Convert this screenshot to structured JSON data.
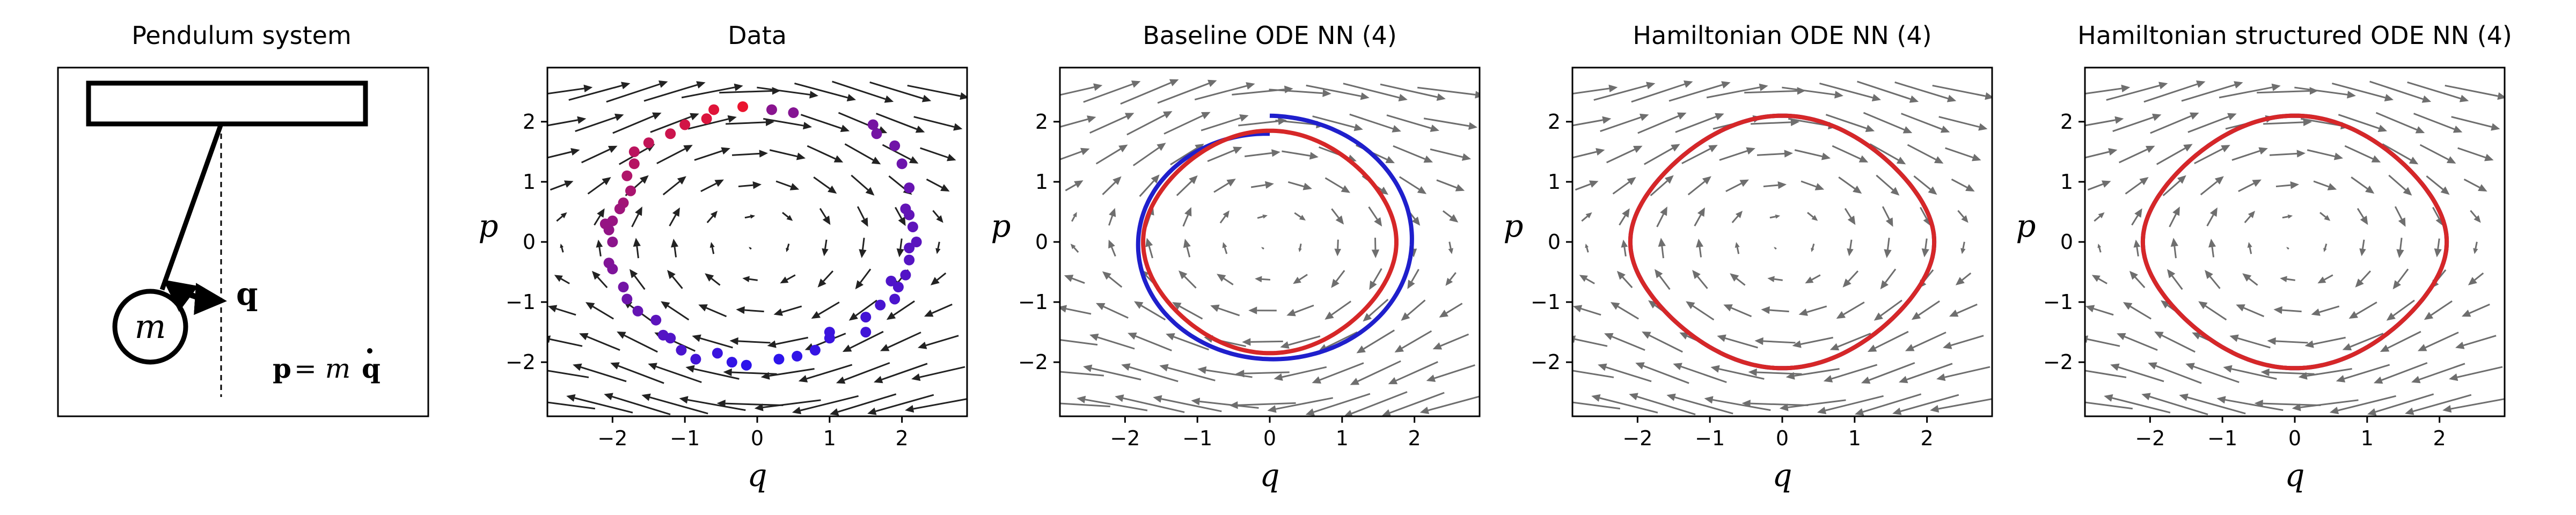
{
  "pendulum_panel": {
    "title": "Pendulum system",
    "mass_label": "m",
    "coord_label": "q",
    "momentum_lhs": "p",
    "momentum_rhs": "= m",
    "momentum_rhs_var": "q"
  },
  "colors": {
    "true_trajectory": "#d62728",
    "model_trajectory": "#1f1fcc",
    "data_arrows": "#222222",
    "model_arrows": "#6e6e6e"
  },
  "chart_data": [
    {
      "type": "scatter",
      "title": "Data",
      "xlabel": "q",
      "ylabel": "p",
      "xlim": [
        -2.9,
        2.9
      ],
      "ylim": [
        -2.9,
        2.9
      ],
      "xticks": [
        -2,
        -1,
        0,
        1,
        2
      ],
      "yticks": [
        -2,
        -1,
        0,
        1,
        2
      ],
      "xtick_labels": [
        "−2",
        "−1",
        "0",
        "1",
        "2"
      ],
      "ytick_labels": [
        "−2",
        "−1",
        "0",
        "1",
        "2"
      ],
      "vector_field": "hamiltonian-pendulum",
      "points": [
        [
          -0.2,
          2.25
        ],
        [
          -0.6,
          2.2
        ],
        [
          -0.7,
          2.05
        ],
        [
          -1.0,
          1.95
        ],
        [
          -1.2,
          1.8
        ],
        [
          -1.5,
          1.65
        ],
        [
          -1.7,
          1.5
        ],
        [
          -1.7,
          1.3
        ],
        [
          -1.8,
          1.1
        ],
        [
          -1.75,
          0.85
        ],
        [
          -1.85,
          0.65
        ],
        [
          -1.9,
          0.55
        ],
        [
          -2.0,
          0.35
        ],
        [
          -2.05,
          0.2
        ],
        [
          -2.1,
          0.3
        ],
        [
          -2.0,
          0.0
        ],
        [
          -2.05,
          -0.35
        ],
        [
          -2.0,
          -0.45
        ],
        [
          -1.85,
          -0.75
        ],
        [
          -1.8,
          -0.95
        ],
        [
          -1.65,
          -1.15
        ],
        [
          -1.4,
          -1.3
        ],
        [
          -1.3,
          -1.55
        ],
        [
          -1.2,
          -1.6
        ],
        [
          -1.05,
          -1.8
        ],
        [
          -0.85,
          -1.95
        ],
        [
          -0.55,
          -1.85
        ],
        [
          -0.35,
          -2.0
        ],
        [
          -0.15,
          -2.05
        ],
        [
          0.3,
          -1.95
        ],
        [
          0.55,
          -1.9
        ],
        [
          0.8,
          -1.8
        ],
        [
          1.0,
          -1.6
        ],
        [
          1.0,
          -1.5
        ],
        [
          1.5,
          -1.25
        ],
        [
          1.9,
          -0.95
        ],
        [
          1.95,
          -0.75
        ],
        [
          2.05,
          -0.55
        ],
        [
          2.1,
          -0.3
        ],
        [
          2.1,
          -0.1
        ],
        [
          2.2,
          0.0
        ],
        [
          2.15,
          0.25
        ],
        [
          2.1,
          0.45
        ],
        [
          2.05,
          0.55
        ],
        [
          2.1,
          0.9
        ],
        [
          2.0,
          1.3
        ],
        [
          1.9,
          1.6
        ],
        [
          1.65,
          1.8
        ],
        [
          1.6,
          1.95
        ],
        [
          0.2,
          2.2
        ],
        [
          0.5,
          2.15
        ],
        [
          1.7,
          -1.05
        ],
        [
          1.5,
          -1.5
        ],
        [
          1.85,
          -0.65
        ]
      ]
    },
    {
      "type": "line",
      "title": "Baseline ODE NN (4)",
      "xlabel": "q",
      "ylabel": "p",
      "xlim": [
        -2.9,
        2.9
      ],
      "ylim": [
        -2.9,
        2.9
      ],
      "xticks": [
        -2,
        -1,
        0,
        1,
        2
      ],
      "yticks": [
        -2,
        -1,
        0,
        1,
        2
      ],
      "xtick_labels": [
        "−2",
        "−1",
        "0",
        "1",
        "2"
      ],
      "ytick_labels": [
        "−2",
        "−1",
        "0",
        "1",
        "2"
      ],
      "vector_field": "baseline-spiral",
      "true_curve": {
        "shape": "pendulum-level-set",
        "amplitude_q": 1.75,
        "amplitude_p": 1.85
      },
      "model_curve": {
        "shape": "outward-spiral",
        "start_radius": 1.8,
        "end_radius": 2.1,
        "turns": 1.0
      }
    },
    {
      "type": "line",
      "title": "Hamiltonian ODE NN (4)",
      "xlabel": "q",
      "ylabel": "p",
      "xlim": [
        -2.9,
        2.9
      ],
      "ylim": [
        -2.9,
        2.9
      ],
      "xticks": [
        -2,
        -1,
        0,
        1,
        2
      ],
      "yticks": [
        -2,
        -1,
        0,
        1,
        2
      ],
      "xtick_labels": [
        "−2",
        "−1",
        "0",
        "1",
        "2"
      ],
      "ytick_labels": [
        "−2",
        "−1",
        "0",
        "1",
        "2"
      ],
      "vector_field": "hamiltonian-pendulum",
      "true_curve": {
        "shape": "pendulum-level-set",
        "amplitude_q": 2.1,
        "amplitude_p": 2.1
      },
      "model_curve": {
        "shape": "pendulum-level-set",
        "amplitude_q": 2.1,
        "amplitude_p": 2.1
      }
    },
    {
      "type": "line",
      "title": "Hamiltonian structured ODE NN (4)",
      "xlabel": "q",
      "ylabel": "p",
      "xlim": [
        -2.9,
        2.9
      ],
      "ylim": [
        -2.9,
        2.9
      ],
      "xticks": [
        -2,
        -1,
        0,
        1,
        2
      ],
      "yticks": [
        -2,
        -1,
        0,
        1,
        2
      ],
      "xtick_labels": [
        "−2",
        "−1",
        "0",
        "1",
        "2"
      ],
      "ytick_labels": [
        "−2",
        "−1",
        "0",
        "1",
        "2"
      ],
      "vector_field": "hamiltonian-pendulum",
      "true_curve": {
        "shape": "pendulum-level-set",
        "amplitude_q": 2.1,
        "amplitude_p": 2.1
      },
      "model_curve": {
        "shape": "pendulum-level-set",
        "amplitude_q": 2.1,
        "amplitude_p": 2.1
      }
    }
  ]
}
